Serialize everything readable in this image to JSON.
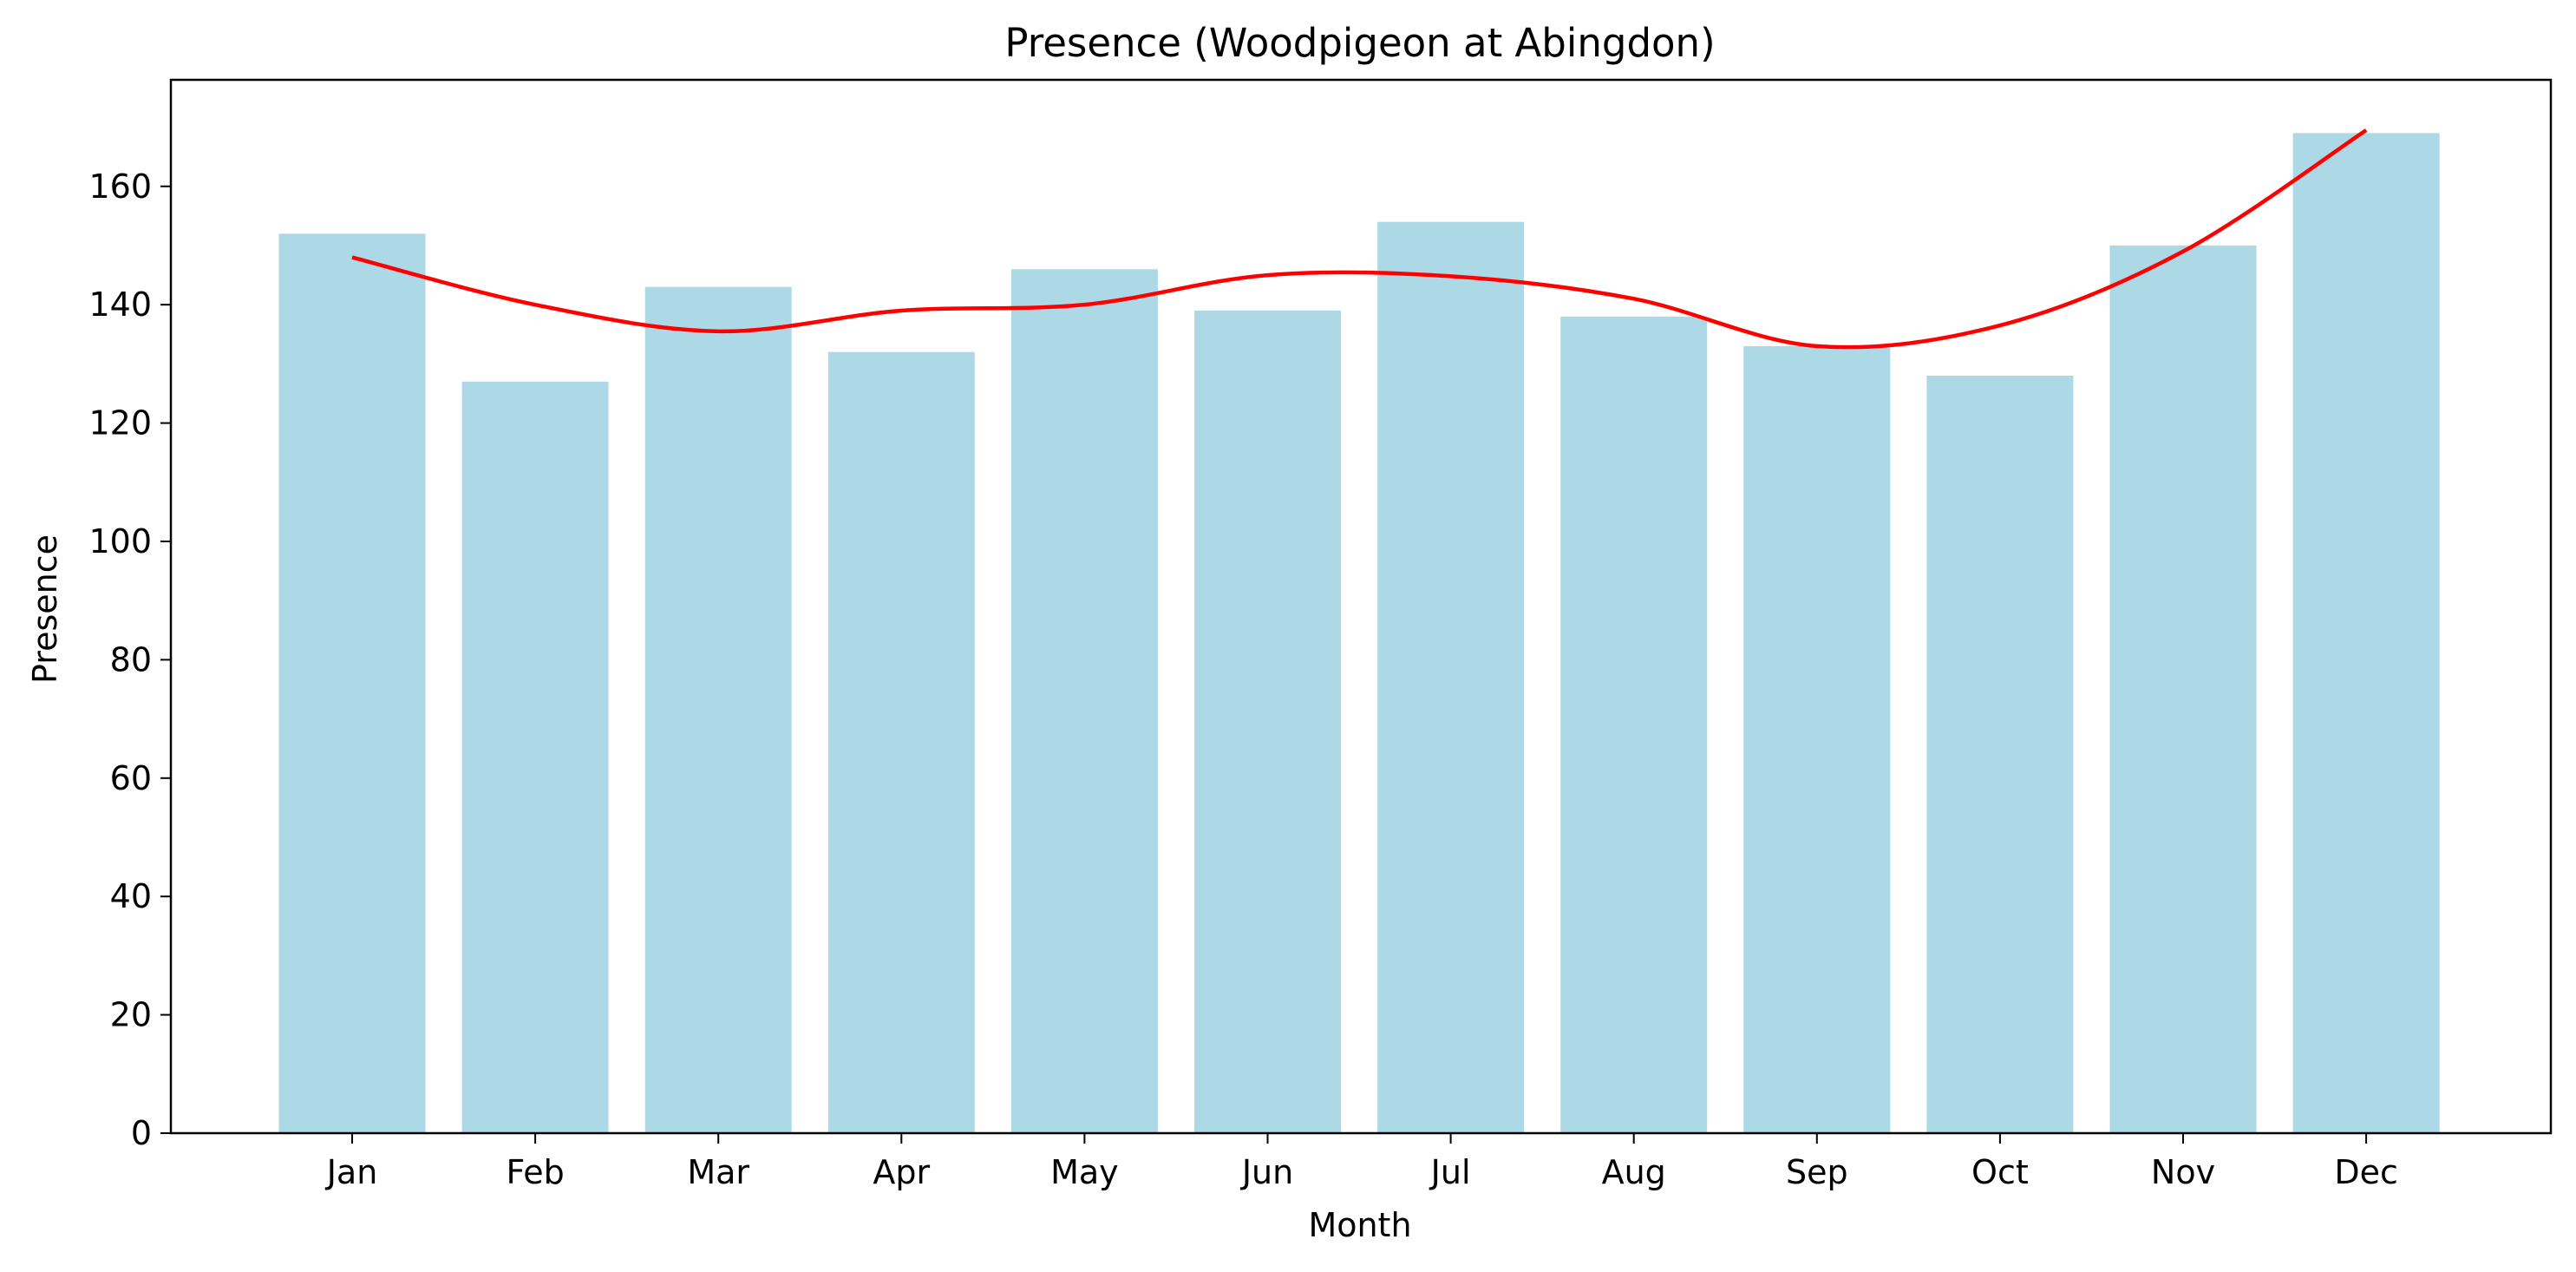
{
  "chart_data": {
    "type": "bar",
    "title": "Presence (Woodpigeon at Abingdon)",
    "xlabel": "Month",
    "ylabel": "Presence",
    "categories": [
      "Jan",
      "Feb",
      "Mar",
      "Apr",
      "May",
      "Jun",
      "Jul",
      "Aug",
      "Sep",
      "Oct",
      "Nov",
      "Dec"
    ],
    "values": [
      152,
      127,
      143,
      132,
      146,
      139,
      154,
      138,
      133,
      128,
      150,
      169
    ],
    "trend": [
      148,
      140,
      135.5,
      139,
      140,
      145,
      144.8,
      141,
      133,
      136.5,
      149,
      169.5
    ],
    "ylim": [
      0,
      178
    ],
    "yticks": [
      0,
      20,
      40,
      60,
      80,
      100,
      120,
      140,
      160
    ],
    "grid": false,
    "legend": "none",
    "bar_color": "#add8e6",
    "line_color": "#ff0000"
  }
}
